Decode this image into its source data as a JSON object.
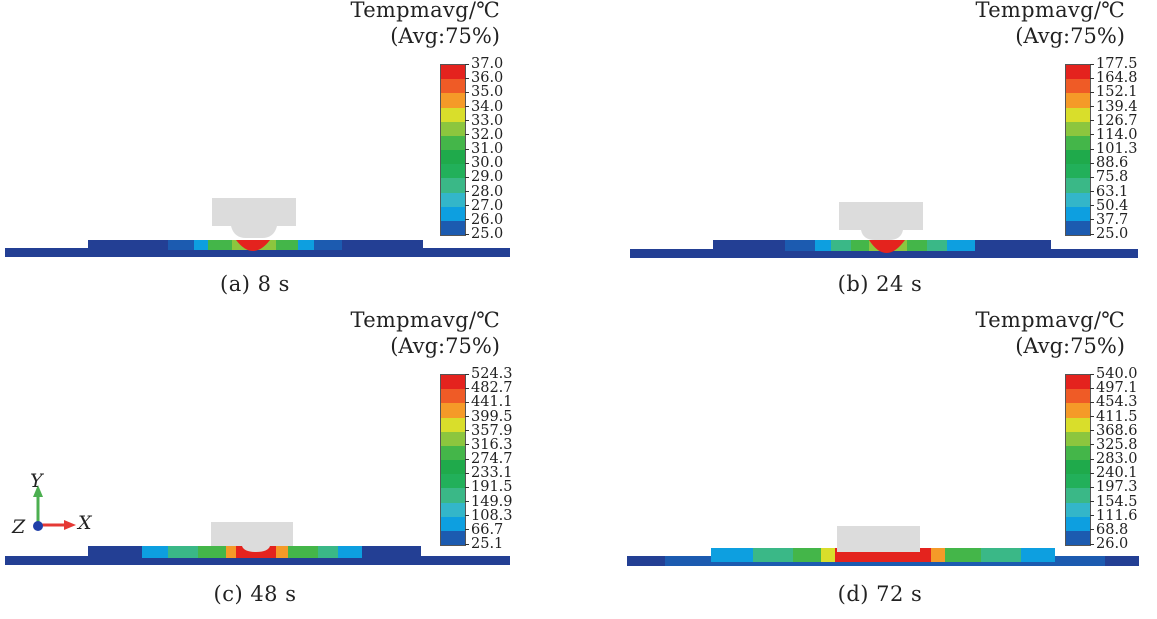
{
  "legend_title": "Tempmavg/℃",
  "legend_subtitle": "(Avg:75%)",
  "colors": [
    "#e4231e",
    "#ef5b26",
    "#f59a28",
    "#d9de2b",
    "#8cc63e",
    "#44b649",
    "#1faa4b",
    "#22b05a",
    "#3ab887",
    "#33b6c9",
    "#0d9fe0",
    "#1c5bb0",
    "#233f94"
  ],
  "axes": {
    "y": "Y",
    "x": "X",
    "z": "Z"
  },
  "panels": [
    {
      "id": "a",
      "caption": "(a) 8 s",
      "ticks": [
        "37.0",
        "36.0",
        "35.0",
        "34.0",
        "33.0",
        "32.0",
        "31.0",
        "30.0",
        "29.0",
        "28.0",
        "27.0",
        "26.0",
        "25.0"
      ]
    },
    {
      "id": "b",
      "caption": "(b) 24 s",
      "ticks": [
        "177.5",
        "164.8",
        "152.1",
        "139.4",
        "126.7",
        "114.0",
        "101.3",
        "88.6",
        "75.8",
        "63.1",
        "50.4",
        "37.7",
        "25.0"
      ]
    },
    {
      "id": "c",
      "caption": "(c) 48 s",
      "ticks": [
        "524.3",
        "482.7",
        "441.1",
        "399.5",
        "357.9",
        "316.3",
        "274.7",
        "233.1",
        "191.5",
        "149.9",
        "108.3",
        "66.7",
        "25.1"
      ]
    },
    {
      "id": "d",
      "caption": "(d) 72 s",
      "ticks": [
        "540.0",
        "497.1",
        "454.3",
        "411.5",
        "368.6",
        "325.8",
        "283.0",
        "240.1",
        "197.3",
        "154.5",
        "111.6",
        "68.8",
        "26.0"
      ]
    }
  ]
}
